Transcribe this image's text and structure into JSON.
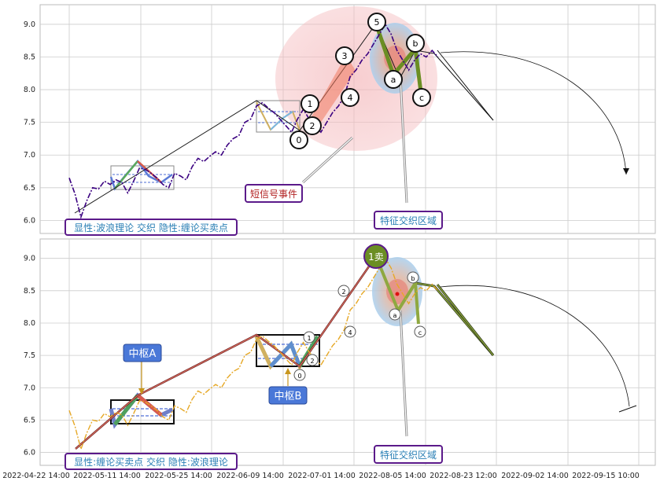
{
  "chart_data": [
    {
      "type": "line",
      "panel": "top",
      "ylim": [
        5.8,
        9.3
      ],
      "y_ticks": [
        "9.0",
        "8.5",
        "8.0",
        "7.5",
        "7.0",
        "6.5",
        "6.0"
      ],
      "grid": true,
      "legend_box": "显性:波浪理论 交织 隐性:缠论买卖点",
      "annotations": {
        "short_signal": "短信号事件",
        "cross_zone": "特征交织区域"
      },
      "wave_labels": [
        "0",
        "1",
        "2",
        "3",
        "4",
        "5",
        "a",
        "b",
        "c"
      ],
      "price_series": [
        [
          0.0,
          6.65
        ],
        [
          1.2,
          6.4
        ],
        [
          2.4,
          6.05
        ],
        [
          3.6,
          6.3
        ],
        [
          4.8,
          6.5
        ],
        [
          6.0,
          6.48
        ],
        [
          7.2,
          6.6
        ],
        [
          8.4,
          6.55
        ],
        [
          9.6,
          6.62
        ],
        [
          10.8,
          6.58
        ],
        [
          12.0,
          6.42
        ],
        [
          13.2,
          6.6
        ],
        [
          14.4,
          6.8
        ],
        [
          15.6,
          6.78
        ],
        [
          16.8,
          6.72
        ],
        [
          18.0,
          6.65
        ],
        [
          19.2,
          6.55
        ],
        [
          20.4,
          6.5
        ],
        [
          21.6,
          6.72
        ],
        [
          22.8,
          6.68
        ],
        [
          24.0,
          6.62
        ],
        [
          25.2,
          6.82
        ],
        [
          26.4,
          6.95
        ],
        [
          27.6,
          6.9
        ],
        [
          28.8,
          6.98
        ],
        [
          30.0,
          7.05
        ],
        [
          31.2,
          7.0
        ],
        [
          32.4,
          7.15
        ],
        [
          33.6,
          7.25
        ],
        [
          34.8,
          7.3
        ],
        [
          36.0,
          7.5
        ],
        [
          37.2,
          7.55
        ],
        [
          38.4,
          7.75
        ],
        [
          39.6,
          7.8
        ],
        [
          40.8,
          7.72
        ],
        [
          42.0,
          7.65
        ],
        [
          43.2,
          7.55
        ],
        [
          44.4,
          7.45
        ],
        [
          45.6,
          7.35
        ],
        [
          46.8,
          7.55
        ],
        [
          48.0,
          7.7
        ],
        [
          49.2,
          7.55
        ],
        [
          50.4,
          7.45
        ],
        [
          51.6,
          7.35
        ],
        [
          52.8,
          7.5
        ],
        [
          54.0,
          7.65
        ],
        [
          55.2,
          7.75
        ],
        [
          56.4,
          7.9
        ],
        [
          57.6,
          8.2
        ],
        [
          58.8,
          8.3
        ],
        [
          60.0,
          8.45
        ],
        [
          61.2,
          8.55
        ],
        [
          62.4,
          8.7
        ],
        [
          63.6,
          8.85
        ],
        [
          64.8,
          9.0
        ],
        [
          66.0,
          8.85
        ],
        [
          67.2,
          8.6
        ],
        [
          68.4,
          8.45
        ],
        [
          69.6,
          8.3
        ],
        [
          70.8,
          8.45
        ],
        [
          72.0,
          8.55
        ],
        [
          73.2,
          8.5
        ],
        [
          74.4,
          8.6
        ],
        [
          75.6,
          8.5
        ]
      ],
      "wave_path": [
        [
          0.0,
          6.05
        ],
        [
          18.0,
          6.85
        ],
        [
          34.5,
          7.8
        ],
        [
          43.8,
          7.35
        ],
        [
          62.0,
          9.0
        ],
        [
          69.0,
          8.2
        ],
        [
          74.0,
          8.6
        ]
      ]
    },
    {
      "type": "line",
      "panel": "bottom",
      "ylim": [
        5.8,
        9.3
      ],
      "y_ticks": [
        "9.0",
        "8.5",
        "8.0",
        "7.5",
        "7.0",
        "6.5",
        "6.0"
      ],
      "grid": true,
      "legend_box": "显性:缠论买卖点 交织 隐性:波浪理论",
      "annotations": {
        "center_a": "中枢A",
        "center_b": "中枢B",
        "sell_point": "1卖",
        "cross_zone": "特征交织区域"
      },
      "wave_labels": [
        "0",
        "1",
        "2",
        "3",
        "4",
        "a",
        "b",
        "c"
      ],
      "x_tick_labels": [
        "2022-04-22 14:00",
        "2022-05-11 14:00",
        "2022-05-25 14:00",
        "2022-06-09 14:00",
        "2022-07-01 14:00",
        "2022-08-05 14:00",
        "2022-08-23 12:00",
        "2022-09-02 14:00",
        "2022-09-15 10:00"
      ]
    }
  ],
  "colors": {
    "price_top": "#3a0080",
    "price_bottom": "#e6a826",
    "grid": "#cccccc",
    "sell_marker": "#6b8e23",
    "label_box_bg": "#4a78d8",
    "cross_zone_border": "#5b1a8a",
    "short_signal_text": "#b22222"
  }
}
